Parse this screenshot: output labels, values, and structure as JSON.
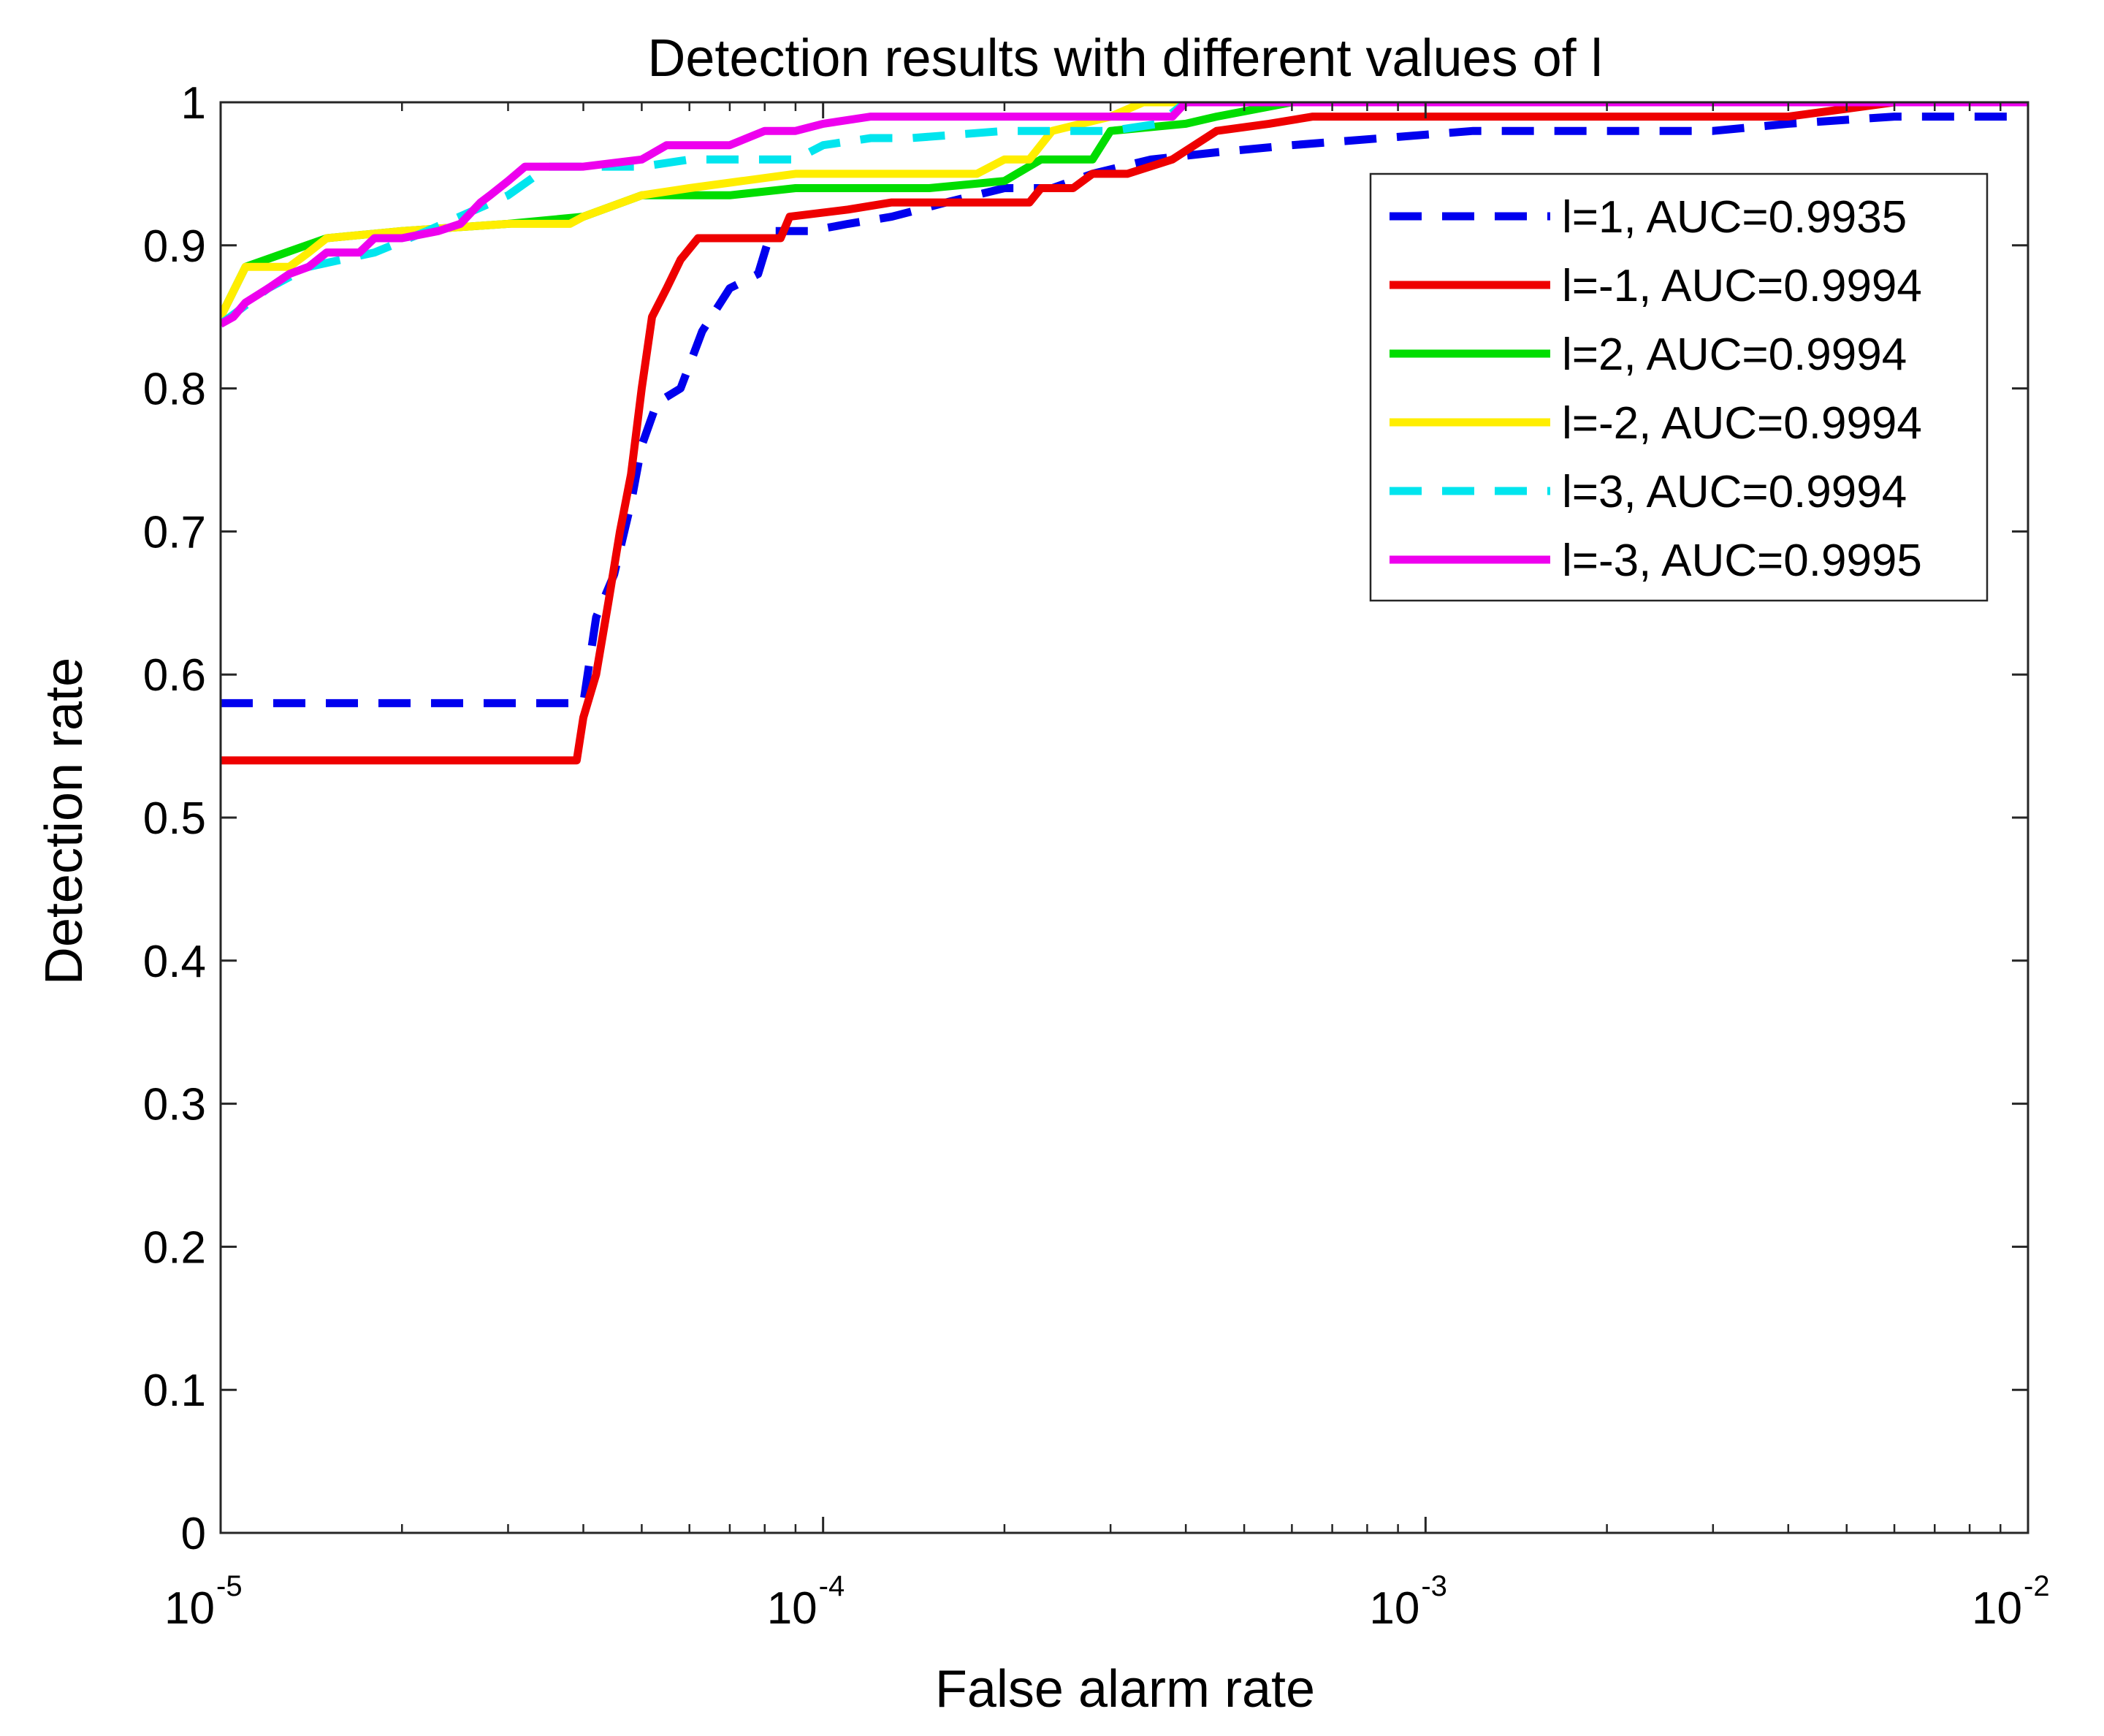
{
  "chart_data": {
    "type": "line",
    "title": "Detection results with different values of l",
    "xlabel": "False alarm rate",
    "ylabel": "Detection rate",
    "xscale": "log",
    "xlim": [
      1e-05,
      0.01
    ],
    "ylim": [
      0,
      1
    ],
    "x_ticks": [
      {
        "value": 1e-05,
        "base": "10",
        "exp": "-5"
      },
      {
        "value": 0.0001,
        "base": "10",
        "exp": "-4"
      },
      {
        "value": 0.001,
        "base": "10",
        "exp": "-3"
      },
      {
        "value": 0.01,
        "base": "10",
        "exp": "-2"
      }
    ],
    "y_ticks": [
      {
        "value": 0,
        "label": "0"
      },
      {
        "value": 0.1,
        "label": "0.1"
      },
      {
        "value": 0.2,
        "label": "0.2"
      },
      {
        "value": 0.3,
        "label": "0.3"
      },
      {
        "value": 0.4,
        "label": "0.4"
      },
      {
        "value": 0.5,
        "label": "0.5"
      },
      {
        "value": 0.6,
        "label": "0.6"
      },
      {
        "value": 0.7,
        "label": "0.7"
      },
      {
        "value": 0.8,
        "label": "0.8"
      },
      {
        "value": 0.9,
        "label": "0.9"
      },
      {
        "value": 1,
        "label": "1"
      }
    ],
    "grid": false,
    "legend_position": "top-right",
    "series": [
      {
        "name": "l=1, AUC=0.9935",
        "color": "#0000ee",
        "dash": "dashed",
        "points": [
          [
            1e-05,
            0.58
          ],
          [
            3.8e-05,
            0.58
          ],
          [
            4e-05,
            0.58
          ],
          [
            4.2e-05,
            0.64
          ],
          [
            4.5e-05,
            0.67
          ],
          [
            4.8e-05,
            0.72
          ],
          [
            5e-05,
            0.76
          ],
          [
            5.3e-05,
            0.79
          ],
          [
            5.8e-05,
            0.8
          ],
          [
            6.3e-05,
            0.84
          ],
          [
            7e-05,
            0.87
          ],
          [
            7.8e-05,
            0.88
          ],
          [
            8.2e-05,
            0.91
          ],
          [
            9.5e-05,
            0.91
          ],
          [
            0.00011,
            0.915
          ],
          [
            0.00013,
            0.92
          ],
          [
            0.00016,
            0.93
          ],
          [
            0.0002,
            0.94
          ],
          [
            0.00024,
            0.94
          ],
          [
            0.00028,
            0.95
          ],
          [
            0.00035,
            0.96
          ],
          [
            0.00045,
            0.965
          ],
          [
            0.0006,
            0.97
          ],
          [
            0.00085,
            0.975
          ],
          [
            0.0012,
            0.98
          ],
          [
            0.002,
            0.98
          ],
          [
            0.003,
            0.98
          ],
          [
            0.004,
            0.985
          ],
          [
            0.006,
            0.99
          ],
          [
            0.008,
            0.99
          ],
          [
            0.01,
            0.99
          ]
        ]
      },
      {
        "name": "l=-1, AUC=0.9994",
        "color": "#ee0000",
        "dash": "solid",
        "points": [
          [
            1e-05,
            0.54
          ],
          [
            3.9e-05,
            0.54
          ],
          [
            4e-05,
            0.57
          ],
          [
            4.2e-05,
            0.6
          ],
          [
            4.4e-05,
            0.65
          ],
          [
            4.6e-05,
            0.7
          ],
          [
            4.8e-05,
            0.74
          ],
          [
            5e-05,
            0.8
          ],
          [
            5.2e-05,
            0.85
          ],
          [
            5.5e-05,
            0.87
          ],
          [
            5.8e-05,
            0.89
          ],
          [
            6.2e-05,
            0.905
          ],
          [
            7e-05,
            0.905
          ],
          [
            8.5e-05,
            0.905
          ],
          [
            8.8e-05,
            0.92
          ],
          [
            0.00011,
            0.925
          ],
          [
            0.00013,
            0.93
          ],
          [
            0.00017,
            0.93
          ],
          [
            0.00022,
            0.93
          ],
          [
            0.00023,
            0.94
          ],
          [
            0.00026,
            0.94
          ],
          [
            0.00028,
            0.95
          ],
          [
            0.00032,
            0.95
          ],
          [
            0.00038,
            0.96
          ],
          [
            0.00045,
            0.98
          ],
          [
            0.00055,
            0.985
          ],
          [
            0.00065,
            0.99
          ],
          [
            0.001,
            0.99
          ],
          [
            0.002,
            0.99
          ],
          [
            0.004,
            0.99
          ],
          [
            0.006,
            1.0
          ],
          [
            0.01,
            1.0
          ]
        ]
      },
      {
        "name": "l=2, AUC=0.9994",
        "color": "#00dd00",
        "dash": "solid",
        "points": [
          [
            1e-05,
            0.85
          ],
          [
            1.1e-05,
            0.885
          ],
          [
            1.5e-05,
            0.905
          ],
          [
            2e-05,
            0.91
          ],
          [
            3e-05,
            0.915
          ],
          [
            4e-05,
            0.92
          ],
          [
            5e-05,
            0.935
          ],
          [
            7e-05,
            0.935
          ],
          [
            9e-05,
            0.94
          ],
          [
            0.00015,
            0.94
          ],
          [
            0.0002,
            0.945
          ],
          [
            0.00023,
            0.96
          ],
          [
            0.00028,
            0.96
          ],
          [
            0.0003,
            0.98
          ],
          [
            0.0004,
            0.985
          ],
          [
            0.00045,
            0.99
          ],
          [
            0.0006,
            1.0
          ],
          [
            0.01,
            1.0
          ]
        ]
      },
      {
        "name": "l=-2, AUC=0.9994",
        "color": "#ffee00",
        "dash": "solid",
        "points": [
          [
            1e-05,
            0.85
          ],
          [
            1.1e-05,
            0.885
          ],
          [
            1.3e-05,
            0.885
          ],
          [
            1.4e-05,
            0.895
          ],
          [
            1.5e-05,
            0.905
          ],
          [
            2e-05,
            0.91
          ],
          [
            3e-05,
            0.915
          ],
          [
            3.8e-05,
            0.915
          ],
          [
            4e-05,
            0.92
          ],
          [
            5e-05,
            0.935
          ],
          [
            6e-05,
            0.94
          ],
          [
            9e-05,
            0.95
          ],
          [
            0.00012,
            0.95
          ],
          [
            0.00018,
            0.95
          ],
          [
            0.0002,
            0.96
          ],
          [
            0.00022,
            0.96
          ],
          [
            0.00024,
            0.98
          ],
          [
            0.0003,
            0.99
          ],
          [
            0.00034,
            1.0
          ],
          [
            0.01,
            1.0
          ]
        ]
      },
      {
        "name": "l=3, AUC=0.9994",
        "color": "#00e5ee",
        "dash": "dashed",
        "points": [
          [
            1e-05,
            0.845
          ],
          [
            1.2e-05,
            0.87
          ],
          [
            1.4e-05,
            0.885
          ],
          [
            1.8e-05,
            0.895
          ],
          [
            2.2e-05,
            0.91
          ],
          [
            3e-05,
            0.935
          ],
          [
            3.5e-05,
            0.955
          ],
          [
            5e-05,
            0.955
          ],
          [
            6e-05,
            0.96
          ],
          [
            7e-05,
            0.96
          ],
          [
            9e-05,
            0.96
          ],
          [
            0.0001,
            0.97
          ],
          [
            0.00012,
            0.975
          ],
          [
            0.00014,
            0.975
          ],
          [
            0.0002,
            0.98
          ],
          [
            0.0003,
            0.98
          ],
          [
            0.00036,
            0.985
          ],
          [
            0.0004,
            1.0
          ],
          [
            0.01,
            1.0
          ]
        ]
      },
      {
        "name": "l=-3, AUC=0.9995",
        "color": "#ee00ee",
        "dash": "solid",
        "points": [
          [
            1e-05,
            0.845
          ],
          [
            1.05e-05,
            0.85
          ],
          [
            1.1e-05,
            0.86
          ],
          [
            1.2e-05,
            0.87
          ],
          [
            1.3e-05,
            0.88
          ],
          [
            1.4e-05,
            0.885
          ],
          [
            1.5e-05,
            0.895
          ],
          [
            1.7e-05,
            0.895
          ],
          [
            1.8e-05,
            0.905
          ],
          [
            2e-05,
            0.905
          ],
          [
            2.3e-05,
            0.91
          ],
          [
            2.5e-05,
            0.915
          ],
          [
            2.7e-05,
            0.93
          ],
          [
            2.8e-05,
            0.935
          ],
          [
            3e-05,
            0.945
          ],
          [
            3.2e-05,
            0.955
          ],
          [
            4e-05,
            0.955
          ],
          [
            5e-05,
            0.96
          ],
          [
            5.5e-05,
            0.97
          ],
          [
            7e-05,
            0.97
          ],
          [
            8e-05,
            0.98
          ],
          [
            9e-05,
            0.98
          ],
          [
            0.0001,
            0.985
          ],
          [
            0.00012,
            0.99
          ],
          [
            0.00015,
            0.99
          ],
          [
            0.0002,
            0.99
          ],
          [
            0.0003,
            0.99
          ],
          [
            0.00038,
            0.99
          ],
          [
            0.0004,
            1.0
          ],
          [
            0.01,
            1.0
          ]
        ]
      }
    ]
  }
}
